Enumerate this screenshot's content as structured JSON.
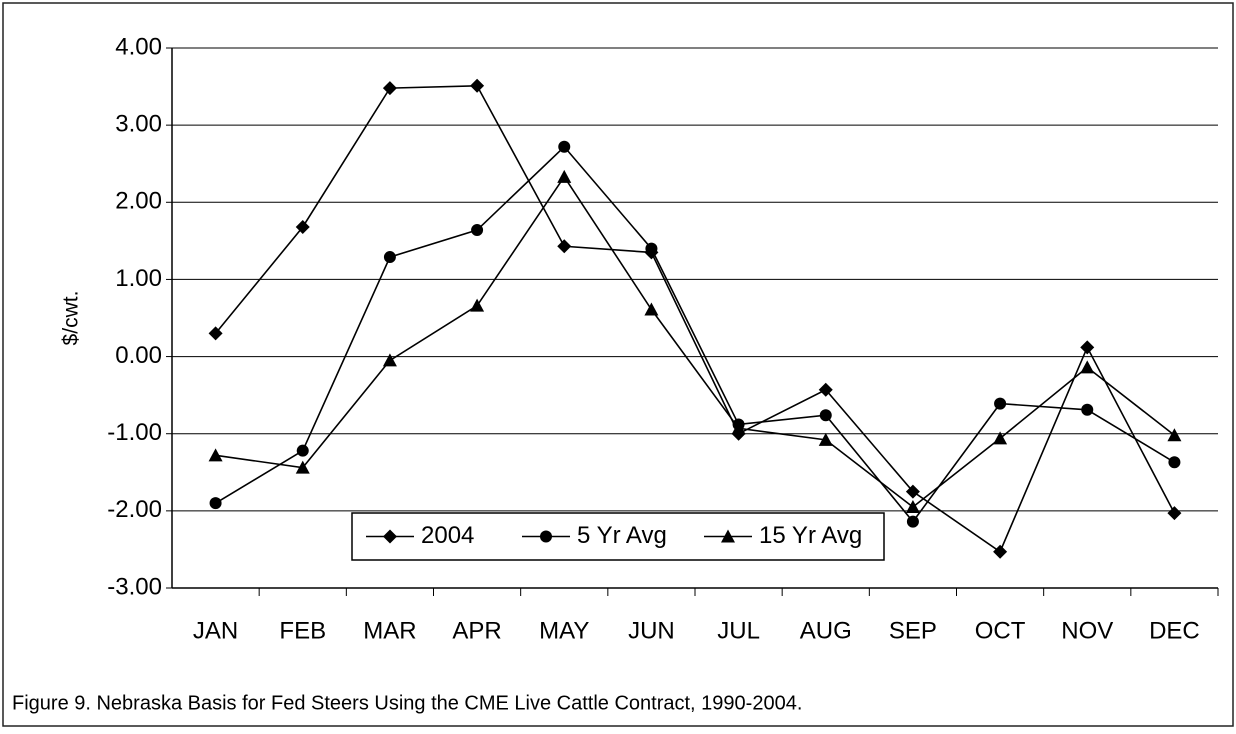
{
  "chart_data": {
    "type": "line",
    "y_label": "$/cwt.",
    "caption": "Figure 9.  Nebraska Basis for Fed Steers Using the CME Live Cattle  Contract, 1990-2004.",
    "categories": [
      "JAN",
      "FEB",
      "MAR",
      "APR",
      "MAY",
      "JUN",
      "JUL",
      "AUG",
      "SEP",
      "OCT",
      "NOV",
      "DEC"
    ],
    "series": [
      {
        "name": "2004",
        "color": "#000000",
        "marker": "diamond",
        "values": [
          0.3,
          1.68,
          3.48,
          3.51,
          1.43,
          1.35,
          -1.0,
          -0.43,
          -1.75,
          -2.53,
          0.12,
          -2.03
        ]
      },
      {
        "name": "5 Yr Avg",
        "color": "#000000",
        "marker": "circle",
        "values": [
          -1.9,
          -1.22,
          1.29,
          1.64,
          2.72,
          1.4,
          -0.88,
          -0.76,
          -2.14,
          -0.61,
          -0.69,
          -1.37
        ]
      },
      {
        "name": "15 Yr Avg",
        "color": "#000000",
        "marker": "triangle",
        "values": [
          -1.28,
          -1.44,
          -0.05,
          0.66,
          2.33,
          0.61,
          -0.93,
          -1.08,
          -1.95,
          -1.06,
          -0.14,
          -1.02
        ]
      }
    ],
    "ylim": [
      -3,
      4
    ],
    "yticks": [
      {
        "value": -3,
        "label": "-3.00"
      },
      {
        "value": -2,
        "label": "-2.00"
      },
      {
        "value": -1,
        "label": "-1.00"
      },
      {
        "value": 0,
        "label": "0.00"
      },
      {
        "value": 1,
        "label": "1.00"
      },
      {
        "value": 2,
        "label": "2.00"
      },
      {
        "value": 3,
        "label": "3.00"
      },
      {
        "value": 4,
        "label": "4.00"
      }
    ],
    "grid": true
  }
}
